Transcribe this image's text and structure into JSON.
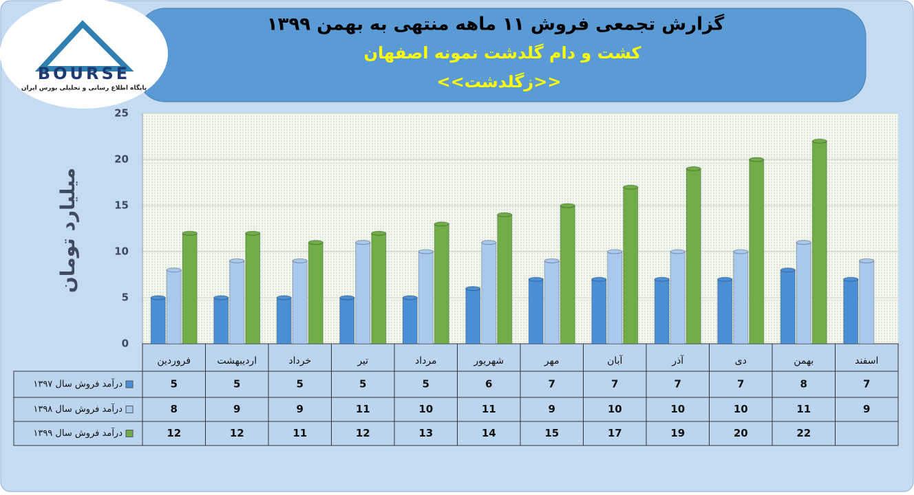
{
  "logo": {
    "name": "BOURSE",
    "tagline": "پایگاه اطلاع رسانی و تحلیلی بورس ایران"
  },
  "chart_data": {
    "type": "bar",
    "title": "گزارش تجمعی فروش ۱۱ ماهه منتهی به بهمن ۱۳۹۹",
    "subtitle": "کشت و دام گلدشت نمونه اصفهان",
    "subtitle2": "<<زگلدشت>>",
    "y_label": "میلیارد تومان",
    "categories": [
      "فروردین",
      "اردیبهشت",
      "خرداد",
      "تیر",
      "مرداد",
      "شهریور",
      "مهر",
      "آبان",
      "آذر",
      "دی",
      "بهمن",
      "اسفند"
    ],
    "series": [
      {
        "name": "درآمد فروش سال ۱۳۹۷",
        "color": "#4a8fd6",
        "values": [
          5,
          5,
          5,
          5,
          5,
          6,
          7,
          7,
          7,
          7,
          8,
          7
        ]
      },
      {
        "name": "درآمد فروش سال ۱۳۹۸",
        "color": "#a9c8ee",
        "values": [
          8,
          9,
          9,
          11,
          10,
          11,
          9,
          10,
          10,
          10,
          11,
          9
        ]
      },
      {
        "name": "درآمد فروش سال ۱۳۹۹",
        "color": "#70ad47",
        "values": [
          12,
          12,
          11,
          12,
          13,
          14,
          15,
          17,
          19,
          20,
          22,
          null
        ]
      }
    ],
    "ylim": [
      0,
      25
    ],
    "yticks": [
      0,
      5,
      10,
      15,
      20,
      25
    ],
    "grid": true
  }
}
